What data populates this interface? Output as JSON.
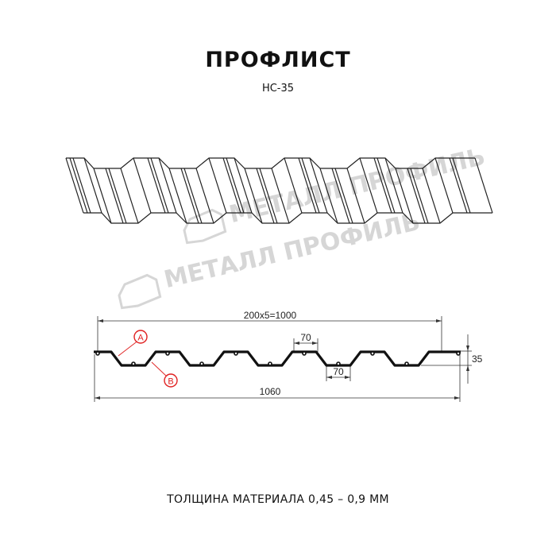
{
  "title": "ПРОФЛИСТ",
  "subtitle": "НС-35",
  "watermark": "МЕТАЛЛ ПРОФИЛЬ",
  "dimensions": {
    "pitch": "200x5=1000",
    "ridge_width": "70",
    "trough_width": "70",
    "height": "35",
    "total_width": "1060"
  },
  "callouts": {
    "a": "A",
    "b": "B"
  },
  "thickness": "ТОЛЩИНА МАТЕРИАЛА 0,45 – 0,9 ММ",
  "colors": {
    "profile": "#111111",
    "callout": "#e02020",
    "watermark": "#d6d6d6"
  }
}
